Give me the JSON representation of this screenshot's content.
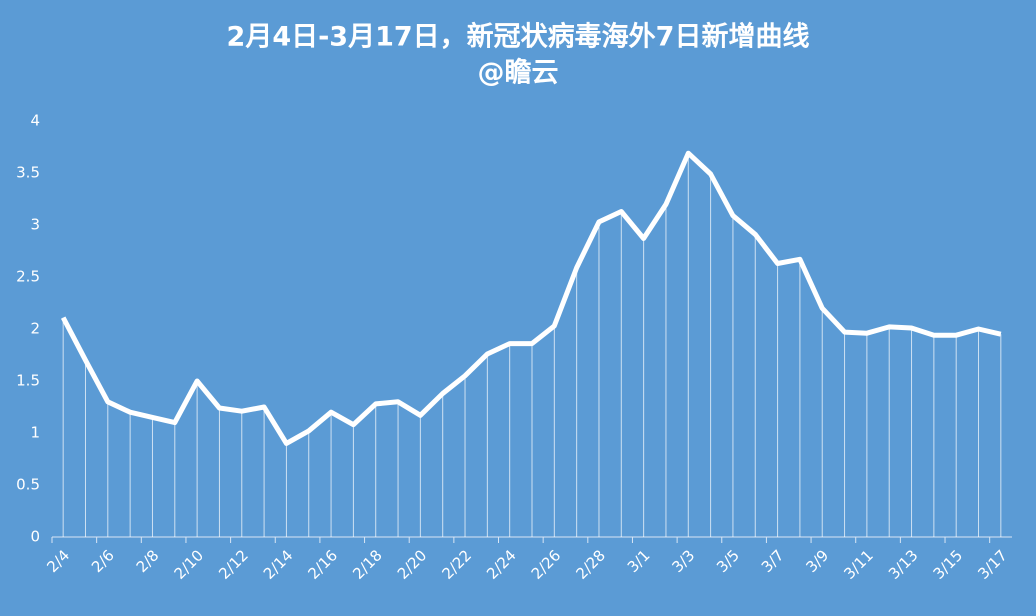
{
  "chart_data": {
    "type": "line",
    "title": "2月4日-3月17日，新冠状病毒海外7日新增曲线",
    "subtitle": "@瞻云",
    "categories": [
      "2/4",
      null,
      "2/6",
      null,
      "2/8",
      null,
      "2/10",
      null,
      "2/12",
      null,
      "2/14",
      null,
      "2/16",
      null,
      "2/18",
      null,
      "2/20",
      null,
      "2/22",
      null,
      "2/24",
      null,
      "2/26",
      null,
      "2/28",
      null,
      "3/1",
      null,
      "3/3",
      null,
      "3/5",
      null,
      "3/7",
      null,
      "3/9",
      null,
      "3/11",
      null,
      "3/13",
      null,
      "3/15",
      null,
      "3/17"
    ],
    "values": [
      2.11,
      1.7,
      1.3,
      1.2,
      1.15,
      1.1,
      1.5,
      1.24,
      1.21,
      1.25,
      0.9,
      1.02,
      1.2,
      1.08,
      1.28,
      1.3,
      1.17,
      1.38,
      1.55,
      1.76,
      1.86,
      1.86,
      2.03,
      2.59,
      3.03,
      3.13,
      2.87,
      3.2,
      3.69,
      3.49,
      3.09,
      2.91,
      2.63,
      2.67,
      2.2,
      1.97,
      1.96,
      2.02,
      2.01,
      1.94,
      1.94,
      2.0,
      1.95
    ],
    "color": "#ffffff",
    "ylim": [
      0,
      4
    ],
    "yticks": [
      0,
      0.5,
      1,
      1.5,
      2,
      2.5,
      3,
      3.5,
      4
    ],
    "drop_lines": true
  }
}
